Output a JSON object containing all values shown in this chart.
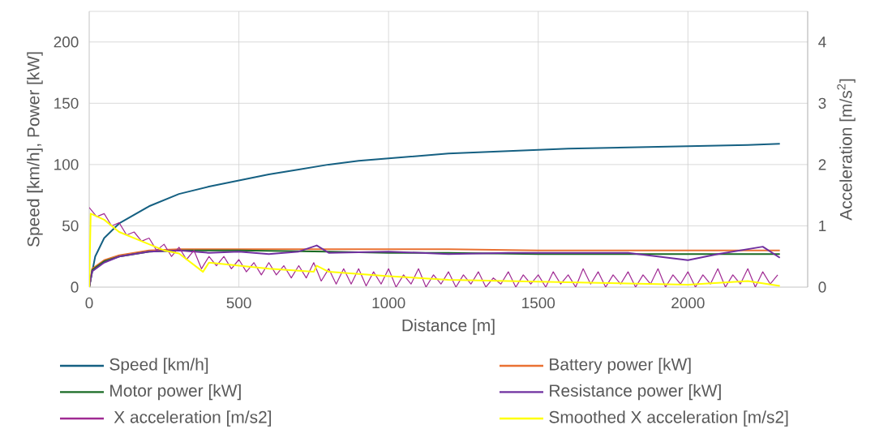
{
  "chart_data": {
    "type": "line",
    "xlabel": "Distance [m]",
    "ylabel": "Speed [km/h], Power [kW]",
    "y2label": "Acceleration [m/s$^{2}$]",
    "xlim": [
      0,
      2400
    ],
    "xticks": [
      0,
      500,
      1000,
      1500,
      2000
    ],
    "ylim": [
      0,
      225
    ],
    "yticks": [
      0,
      50,
      100,
      150,
      200
    ],
    "y2lim": [
      0,
      4.5
    ],
    "y2ticks": [
      0,
      1,
      2,
      3,
      4
    ],
    "grid": true,
    "legend": "bottom",
    "series": [
      {
        "name": "Speed [km/h]",
        "color": "#156082",
        "x": [
          0,
          20,
          50,
          100,
          200,
          300,
          400,
          500,
          600,
          700,
          800,
          900,
          1000,
          1200,
          1400,
          1600,
          1800,
          2000,
          2200,
          2307
        ],
        "values": [
          0,
          25,
          40,
          52,
          66,
          76,
          82,
          87,
          92,
          96,
          100,
          103,
          105,
          109,
          111,
          113,
          114,
          115,
          116,
          117
        ]
      },
      {
        "name": "Battery power [kW]",
        "color": "#e97132",
        "x": [
          0,
          10,
          50,
          100,
          200,
          300,
          500,
          800,
          1000,
          1200,
          1500,
          1800,
          2000,
          2307
        ],
        "values": [
          0,
          15,
          22,
          26,
          30,
          31,
          31,
          31,
          31,
          31,
          30,
          30,
          30,
          30
        ]
      },
      {
        "name": "Motor power [kW]",
        "color": "#196b24",
        "x": [
          0,
          10,
          50,
          100,
          200,
          300,
          500,
          800,
          1000,
          1200,
          1500,
          1800,
          2000,
          2307
        ],
        "values": [
          0,
          14,
          21,
          25,
          29,
          30,
          30,
          29,
          28,
          28,
          27,
          27,
          27,
          27
        ]
      },
      {
        "name": "Resistance power [kW]",
        "color": "#7030a0",
        "x": [
          0,
          10,
          50,
          100,
          200,
          300,
          400,
          500,
          600,
          700,
          760,
          800,
          1000,
          1200,
          1400,
          1600,
          1800,
          2000,
          2100,
          2250,
          2307
        ],
        "values": [
          0,
          13,
          20,
          25,
          29,
          30,
          28,
          29,
          27,
          29,
          34,
          28,
          29,
          27,
          28,
          28,
          28,
          22,
          27,
          33,
          24
        ]
      },
      {
        "name": " X acceleration [m/s2]",
        "color": "#a02b93",
        "axis": "y2",
        "x": [
          0,
          25,
          50,
          75,
          100,
          125,
          150,
          175,
          200,
          225,
          250,
          275,
          300,
          325,
          350,
          375,
          400,
          425,
          450,
          475,
          500,
          525,
          550,
          575,
          600,
          625,
          650,
          675,
          700,
          725,
          750,
          775,
          800,
          825,
          850,
          875,
          900,
          925,
          950,
          975,
          1000,
          1025,
          1050,
          1075,
          1100,
          1125,
          1150,
          1175,
          1200,
          1225,
          1250,
          1275,
          1300,
          1325,
          1350,
          1375,
          1400,
          1425,
          1450,
          1475,
          1500,
          1525,
          1550,
          1575,
          1600,
          1625,
          1650,
          1675,
          1700,
          1725,
          1750,
          1775,
          1800,
          1825,
          1850,
          1875,
          1900,
          1925,
          1950,
          1975,
          2000,
          2025,
          2050,
          2075,
          2100,
          2125,
          2150,
          2175,
          2200,
          2225,
          2250,
          2275,
          2300
        ],
        "values": [
          1.3,
          1.15,
          1.2,
          1.0,
          1.05,
          0.85,
          0.9,
          0.75,
          0.8,
          0.6,
          0.7,
          0.5,
          0.65,
          0.45,
          0.6,
          0.3,
          0.5,
          0.35,
          0.5,
          0.3,
          0.45,
          0.25,
          0.4,
          0.2,
          0.4,
          0.2,
          0.35,
          0.15,
          0.35,
          0.15,
          0.4,
          0.1,
          0.3,
          0.05,
          0.3,
          0.05,
          0.3,
          0.02,
          0.25,
          0.05,
          0.3,
          0.0,
          0.2,
          0.05,
          0.3,
          0.0,
          0.2,
          0.05,
          0.25,
          0.0,
          0.2,
          0.05,
          0.25,
          0.0,
          0.15,
          0.05,
          0.25,
          0.0,
          0.2,
          0.05,
          0.2,
          0.0,
          0.25,
          0.05,
          0.2,
          0.0,
          0.3,
          0.05,
          0.25,
          0.0,
          0.2,
          0.05,
          0.25,
          0.0,
          0.2,
          0.05,
          0.3,
          0.0,
          0.2,
          0.05,
          0.25,
          0.0,
          0.2,
          0.05,
          0.3,
          0.0,
          0.2,
          0.05,
          0.3,
          0.0,
          0.25,
          0.05,
          0.2
        ]
      },
      {
        "name": "Smoothed X acceleration [m/s2]",
        "color": "#ffff00",
        "axis": "y2",
        "x": [
          0,
          5,
          50,
          100,
          200,
          250,
          300,
          380,
          400,
          500,
          600,
          750,
          760,
          800,
          1000,
          1200,
          1400,
          1600,
          1800,
          2000,
          2200,
          2307
        ],
        "values": [
          0,
          1.2,
          1.1,
          0.9,
          0.7,
          0.6,
          0.55,
          0.25,
          0.4,
          0.35,
          0.3,
          0.25,
          0.35,
          0.25,
          0.18,
          0.12,
          0.1,
          0.08,
          0.06,
          0.04,
          0.1,
          0.02
        ]
      }
    ]
  }
}
